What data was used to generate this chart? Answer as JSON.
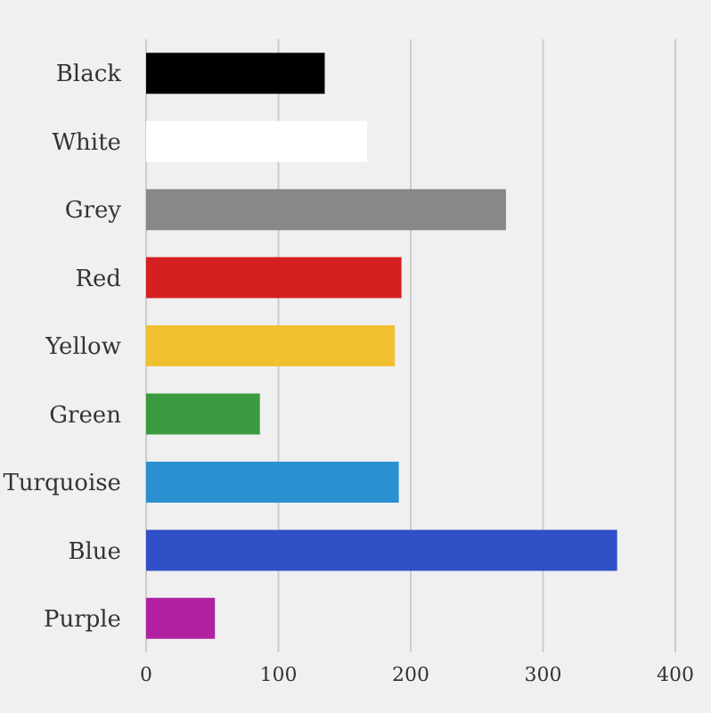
{
  "chart_data": {
    "type": "bar",
    "orientation": "horizontal",
    "categories": [
      "Black",
      "White",
      "Grey",
      "Red",
      "Yellow",
      "Green",
      "Turquoise",
      "Blue",
      "Purple"
    ],
    "values": [
      135,
      167,
      272,
      193,
      188,
      86,
      191,
      356,
      52
    ],
    "colors": [
      "#000000",
      "#ffffff",
      "#888888",
      "#d42020",
      "#f0c030",
      "#3a9a40",
      "#2a90d0",
      "#3050c8",
      "#b020a0"
    ],
    "xlim": [
      0,
      400
    ],
    "xticks": [
      0,
      100,
      200,
      300,
      400
    ],
    "grid": "x"
  }
}
